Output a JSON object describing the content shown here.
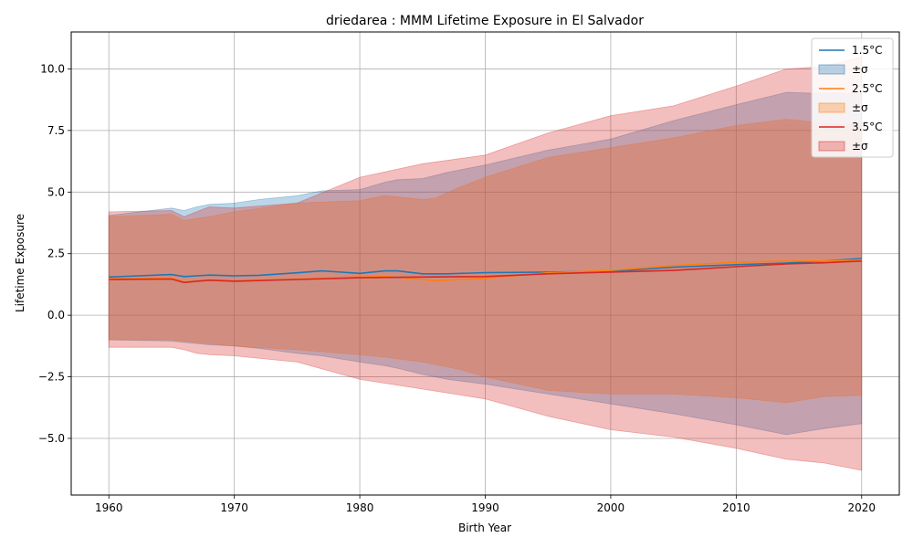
{
  "chart_data": {
    "type": "area",
    "title": "driedarea : MMM Lifetime Exposure in El Salvador",
    "xlabel": "Birth Year",
    "ylabel": "Lifetime Exposure",
    "xlim": [
      1957,
      2023
    ],
    "ylim": [
      -7.3,
      11.5
    ],
    "xticks": [
      1960,
      1970,
      1980,
      1990,
      2000,
      2010,
      2020
    ],
    "yticks": [
      -5.0,
      -2.5,
      0.0,
      2.5,
      5.0,
      7.5,
      10.0
    ],
    "ytick_labels": [
      "−5.0",
      "−2.5",
      "0.0",
      "2.5",
      "5.0",
      "7.5",
      "10.0"
    ],
    "grid": true,
    "legend_position": "top-right",
    "series": [
      {
        "name": "1.5°C",
        "band_label": "±σ",
        "line_color": "#1f77b4",
        "band_color": "#1f77b4",
        "x": [
          1960,
          1965,
          1966,
          1967,
          1968,
          1970,
          1972,
          1975,
          1977,
          1980,
          1982,
          1983,
          1985,
          1987,
          1990,
          1995,
          2000,
          2005,
          2010,
          2014,
          2017,
          2020
        ],
        "mean": [
          1.55,
          1.65,
          1.57,
          1.6,
          1.63,
          1.6,
          1.62,
          1.72,
          1.8,
          1.7,
          1.8,
          1.8,
          1.68,
          1.68,
          1.73,
          1.75,
          1.78,
          1.95,
          2.05,
          2.12,
          2.2,
          2.3
        ],
        "upper": [
          4.05,
          4.35,
          4.25,
          4.4,
          4.5,
          4.55,
          4.7,
          4.85,
          5.05,
          5.1,
          5.4,
          5.5,
          5.55,
          5.8,
          6.1,
          6.7,
          7.15,
          7.9,
          8.55,
          9.05,
          9.0,
          9.0
        ],
        "lower": [
          -1.0,
          -1.05,
          -1.1,
          -1.15,
          -1.2,
          -1.25,
          -1.35,
          -1.55,
          -1.65,
          -1.9,
          -2.05,
          -2.15,
          -2.4,
          -2.6,
          -2.8,
          -3.2,
          -3.6,
          -4.0,
          -4.45,
          -4.85,
          -4.6,
          -4.4
        ]
      },
      {
        "name": "2.5°C",
        "band_label": "±σ",
        "line_color": "#ff7f0e",
        "band_color": "#ff7f0e",
        "x": [
          1960,
          1965,
          1966,
          1968,
          1970,
          1975,
          1980,
          1982,
          1985,
          1986,
          1988,
          1990,
          1995,
          2000,
          2005,
          2010,
          2014,
          2017,
          2020
        ],
        "mean": [
          1.48,
          1.5,
          1.35,
          1.43,
          1.4,
          1.47,
          1.55,
          1.58,
          1.45,
          1.4,
          1.45,
          1.5,
          1.72,
          1.82,
          2.02,
          2.15,
          2.2,
          2.2,
          2.25
        ],
        "upper": [
          4.0,
          4.1,
          3.85,
          4.0,
          4.2,
          4.55,
          4.65,
          4.85,
          4.7,
          4.75,
          5.2,
          5.6,
          6.4,
          6.8,
          7.2,
          7.7,
          7.95,
          7.8,
          7.7
        ],
        "lower": [
          -1.0,
          -1.0,
          -1.05,
          -1.15,
          -1.25,
          -1.4,
          -1.6,
          -1.7,
          -1.9,
          -2.0,
          -2.2,
          -2.5,
          -3.05,
          -3.2,
          -3.2,
          -3.35,
          -3.55,
          -3.3,
          -3.25
        ]
      },
      {
        "name": "3.5°C",
        "band_label": "±σ",
        "line_color": "#d62728",
        "band_color": "#d62728",
        "x": [
          1960,
          1965,
          1966,
          1967,
          1968,
          1970,
          1975,
          1980,
          1985,
          1990,
          1995,
          2000,
          2005,
          2010,
          2014,
          2017,
          2020
        ],
        "mean": [
          1.45,
          1.47,
          1.33,
          1.38,
          1.42,
          1.38,
          1.45,
          1.52,
          1.55,
          1.57,
          1.68,
          1.75,
          1.82,
          1.97,
          2.08,
          2.13,
          2.2
        ],
        "upper": [
          4.2,
          4.25,
          4.0,
          4.2,
          4.4,
          4.35,
          4.55,
          5.6,
          6.15,
          6.5,
          7.4,
          8.1,
          8.5,
          9.3,
          10.0,
          10.1,
          10.5
        ],
        "lower": [
          -1.3,
          -1.3,
          -1.4,
          -1.55,
          -1.6,
          -1.65,
          -1.9,
          -2.6,
          -3.0,
          -3.4,
          -4.1,
          -4.65,
          -4.95,
          -5.4,
          -5.85,
          -6.0,
          -6.3
        ]
      }
    ]
  }
}
